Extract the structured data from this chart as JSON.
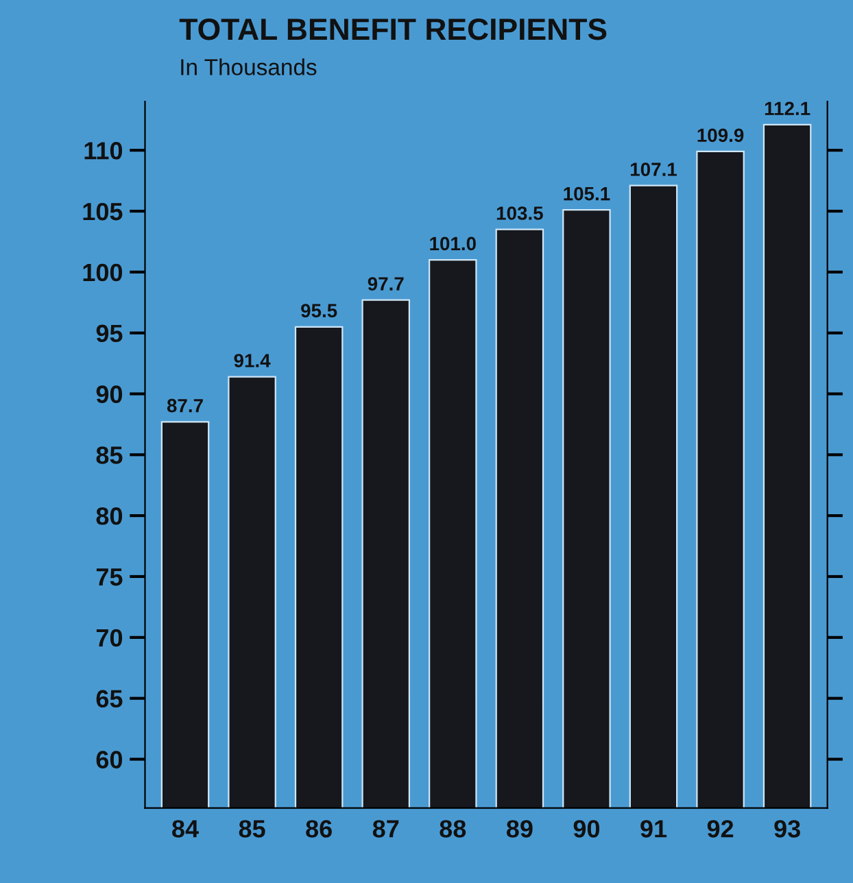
{
  "chart_data": {
    "type": "bar",
    "title": "TOTAL BENEFIT RECIPIENTS",
    "subtitle": "In Thousands",
    "categories": [
      "84",
      "85",
      "86",
      "87",
      "88",
      "89",
      "90",
      "91",
      "92",
      "93"
    ],
    "values": [
      87.7,
      91.4,
      95.5,
      97.7,
      101.0,
      103.5,
      105.1,
      107.1,
      109.9,
      112.1
    ],
    "value_labels": [
      "87.7",
      "91.4",
      "95.5",
      "97.7",
      "101.0",
      "103.5",
      "105.1",
      "107.1",
      "109.9",
      "112.1"
    ],
    "color": "#16181d",
    "grid": false,
    "ylim": [
      56,
      114
    ],
    "yticks": [
      60,
      65,
      70,
      75,
      80,
      85,
      90,
      95,
      100,
      105,
      110
    ]
  }
}
